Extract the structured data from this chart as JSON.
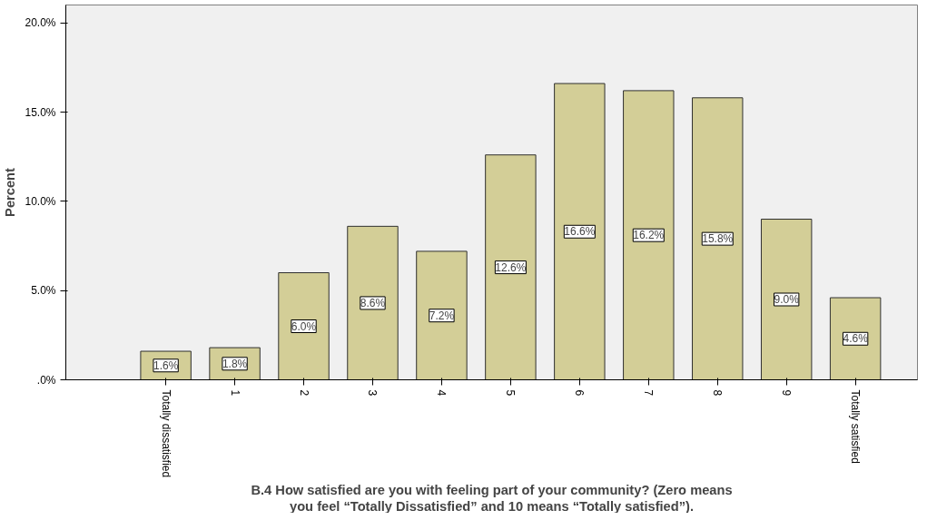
{
  "chart_data": {
    "type": "bar",
    "ylabel": "Percent",
    "xlabel": "B.4 How satisfied are you with feeling part of your community? (Zero means you feel “Totally Dissatisfied” and 10 means “Totally satisfied”).",
    "categories": [
      "Totally dissatisfied",
      "1",
      "2",
      "3",
      "4",
      "5",
      "6",
      "7",
      "8",
      "9",
      "Totally satisfied"
    ],
    "values": [
      1.6,
      1.8,
      6.0,
      8.6,
      7.2,
      12.6,
      16.6,
      16.2,
      15.8,
      9.0,
      4.6
    ],
    "value_labels": [
      "1.6%",
      "1.8%",
      "6.0%",
      "8.6%",
      "7.2%",
      "12.6%",
      "16.6%",
      "16.2%",
      "15.8%",
      "9.0%",
      "4.6%"
    ],
    "color": "#d3ce97",
    "ylim": [
      0,
      21
    ],
    "yticks": [
      {
        "value": 0,
        "label": ".0%"
      },
      {
        "value": 5,
        "label": "5.0%"
      },
      {
        "value": 10,
        "label": "10.0%"
      },
      {
        "value": 15,
        "label": "15.0%"
      },
      {
        "value": 20,
        "label": "20.0%"
      }
    ],
    "grid": false
  }
}
